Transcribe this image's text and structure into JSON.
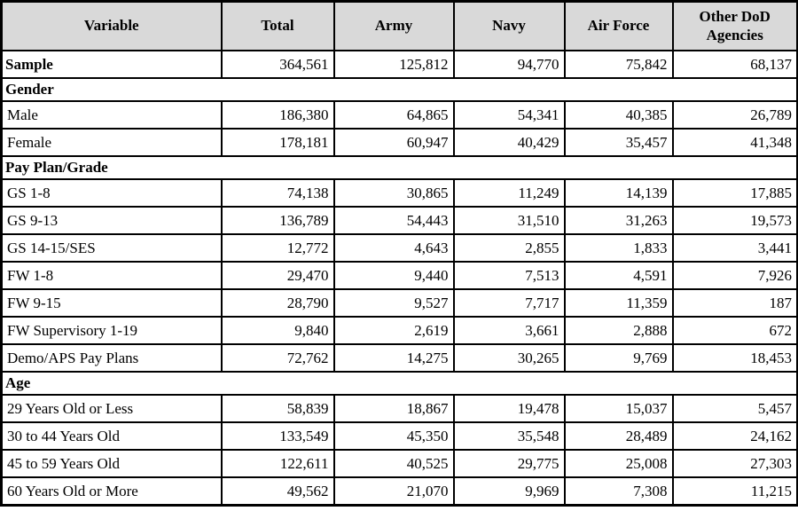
{
  "colors": {
    "header_bg": "#d9d9d9",
    "border": "#000000",
    "text": "#000000"
  },
  "table": {
    "columns": [
      "Variable",
      "Total",
      "Army",
      "Navy",
      "Air Force",
      "Other DoD Agencies"
    ],
    "sections": [
      {
        "header": null,
        "rows": [
          {
            "label": "Sample",
            "bold": true,
            "values": [
              "364,561",
              "125,812",
              "94,770",
              "75,842",
              "68,137"
            ]
          }
        ]
      },
      {
        "header": "Gender",
        "rows": [
          {
            "label": "Male",
            "bold": false,
            "values": [
              "186,380",
              "64,865",
              "54,341",
              "40,385",
              "26,789"
            ]
          },
          {
            "label": "Female",
            "bold": false,
            "values": [
              "178,181",
              "60,947",
              "40,429",
              "35,457",
              "41,348"
            ]
          }
        ]
      },
      {
        "header": "Pay Plan/Grade",
        "rows": [
          {
            "label": "GS 1-8",
            "bold": false,
            "values": [
              "74,138",
              "30,865",
              "11,249",
              "14,139",
              "17,885"
            ]
          },
          {
            "label": "GS 9-13",
            "bold": false,
            "values": [
              "136,789",
              "54,443",
              "31,510",
              "31,263",
              "19,573"
            ]
          },
          {
            "label": "GS 14-15/SES",
            "bold": false,
            "values": [
              "12,772",
              "4,643",
              "2,855",
              "1,833",
              "3,441"
            ]
          },
          {
            "label": "FW 1-8",
            "bold": false,
            "values": [
              "29,470",
              "9,440",
              "7,513",
              "4,591",
              "7,926"
            ]
          },
          {
            "label": "FW 9-15",
            "bold": false,
            "values": [
              "28,790",
              "9,527",
              "7,717",
              "11,359",
              "187"
            ]
          },
          {
            "label": "FW Supervisory 1-19",
            "bold": false,
            "values": [
              "9,840",
              "2,619",
              "3,661",
              "2,888",
              "672"
            ]
          },
          {
            "label": "Demo/APS Pay Plans",
            "bold": false,
            "values": [
              "72,762",
              "14,275",
              "30,265",
              "9,769",
              "18,453"
            ]
          }
        ]
      },
      {
        "header": "Age",
        "rows": [
          {
            "label": "29 Years Old or Less",
            "bold": false,
            "values": [
              "58,839",
              "18,867",
              "19,478",
              "15,037",
              "5,457"
            ]
          },
          {
            "label": "30 to 44 Years Old",
            "bold": false,
            "values": [
              "133,549",
              "45,350",
              "35,548",
              "28,489",
              "24,162"
            ]
          },
          {
            "label": "45 to 59 Years Old",
            "bold": false,
            "values": [
              "122,611",
              "40,525",
              "29,775",
              "25,008",
              "27,303"
            ]
          },
          {
            "label": "60 Years Old or More",
            "bold": false,
            "values": [
              "49,562",
              "21,070",
              "9,969",
              "7,308",
              "11,215"
            ]
          }
        ]
      }
    ]
  }
}
